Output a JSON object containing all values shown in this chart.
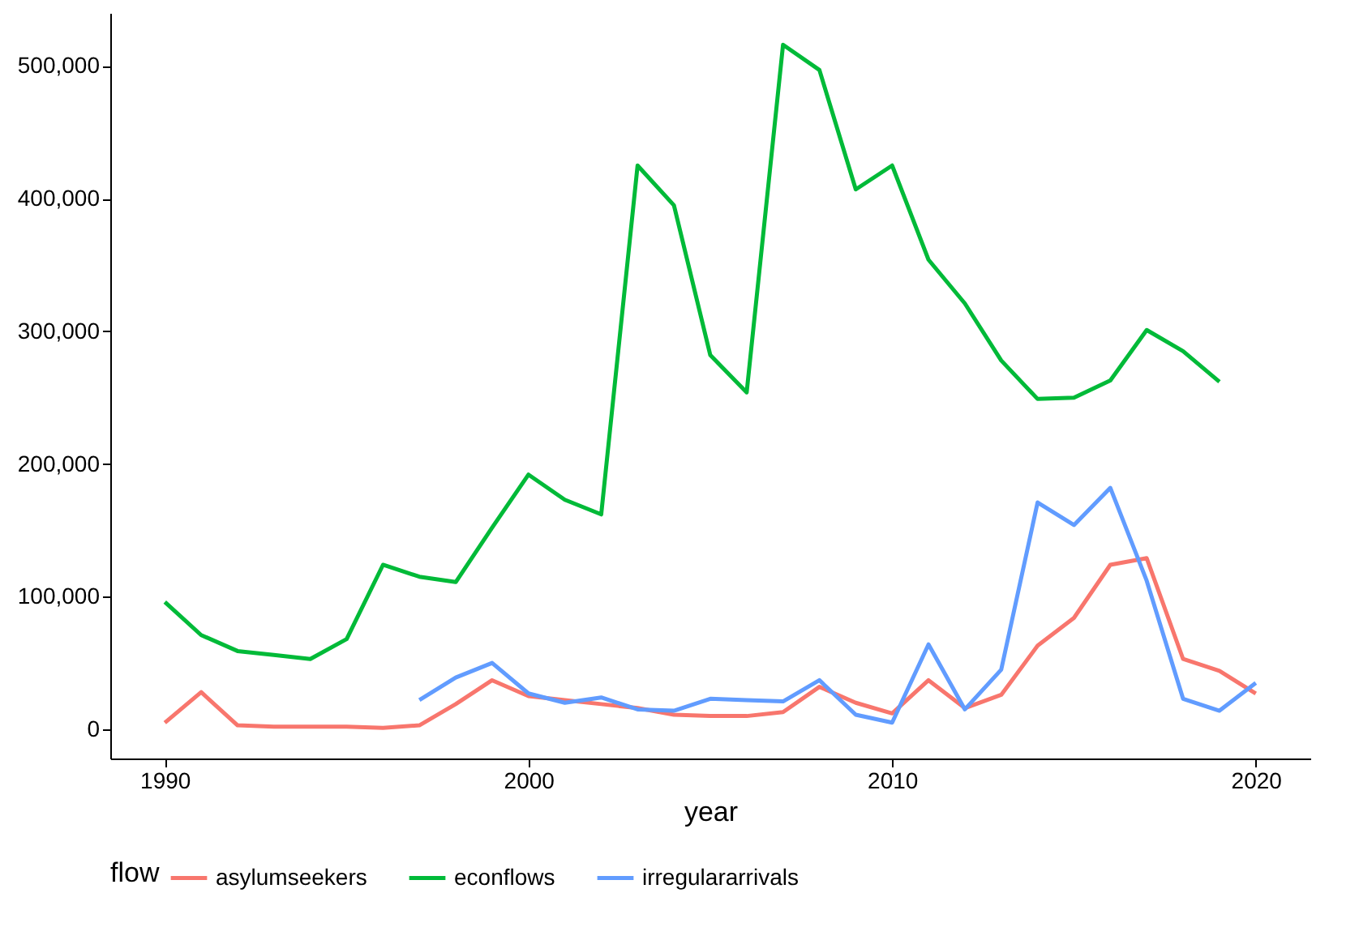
{
  "chart_data": {
    "type": "line",
    "xlabel": "year",
    "legend_title": "flow",
    "legend": "bottom",
    "grid": false,
    "line_style": "solid",
    "marker": "none",
    "xlim": [
      1988.5,
      2021.5
    ],
    "xticks": [
      1990,
      2000,
      2010,
      2020
    ],
    "ylim": [
      -22000,
      540000
    ],
    "yticks": [
      0,
      {
        "value": 100000,
        "label": "100,000"
      },
      {
        "value": 200000,
        "label": "200,000"
      },
      {
        "value": 300000,
        "label": "300,000"
      },
      {
        "value": 400000,
        "label": "400,000"
      },
      {
        "value": 500000,
        "label": "500,000"
      }
    ],
    "series": [
      {
        "name": "asylumseekers",
        "color": "#f8766d",
        "x": [
          1990,
          1991,
          1992,
          1993,
          1994,
          1995,
          1996,
          1997,
          1998,
          1999,
          2000,
          2001,
          2002,
          2003,
          2004,
          2005,
          2006,
          2007,
          2008,
          2009,
          2010,
          2011,
          2012,
          2013,
          2014,
          2015,
          2016,
          2017,
          2018,
          2019,
          2020
        ],
        "values": [
          5000,
          28000,
          3000,
          2000,
          2000,
          2000,
          1000,
          3000,
          19000,
          37000,
          25000,
          22000,
          19000,
          16000,
          11000,
          10000,
          10000,
          13000,
          32000,
          20000,
          12000,
          37000,
          16000,
          26000,
          63000,
          84000,
          124000,
          129000,
          53000,
          44000,
          27000
        ]
      },
      {
        "name": "econflows",
        "color": "#00ba38",
        "x": [
          1990,
          1991,
          1992,
          1993,
          1994,
          1995,
          1996,
          1997,
          1998,
          1999,
          2000,
          2001,
          2002,
          2003,
          2004,
          2005,
          2006,
          2007,
          2008,
          2009,
          2010,
          2011,
          2012,
          2013,
          2014,
          2015,
          2016,
          2017,
          2018,
          2019
        ],
        "values": [
          96000,
          71000,
          59000,
          56000,
          53000,
          68000,
          124000,
          115000,
          111000,
          152000,
          192000,
          173000,
          162000,
          425000,
          395000,
          282000,
          254000,
          516000,
          497000,
          407000,
          425000,
          354000,
          321000,
          278000,
          249000,
          250000,
          263000,
          301000,
          285000,
          262000
        ]
      },
      {
        "name": "irregulararrivals",
        "color": "#619cff",
        "x": [
          1997,
          1998,
          1999,
          2000,
          2001,
          2002,
          2003,
          2004,
          2005,
          2006,
          2007,
          2008,
          2009,
          2010,
          2011,
          2012,
          2013,
          2014,
          2015,
          2016,
          2017,
          2018,
          2019,
          2020
        ],
        "values": [
          22000,
          39000,
          50000,
          27000,
          20000,
          24000,
          15000,
          14000,
          23000,
          22000,
          21000,
          37000,
          11000,
          5000,
          64000,
          15000,
          45000,
          171000,
          154000,
          182000,
          112000,
          23000,
          14000,
          35000
        ]
      }
    ]
  }
}
